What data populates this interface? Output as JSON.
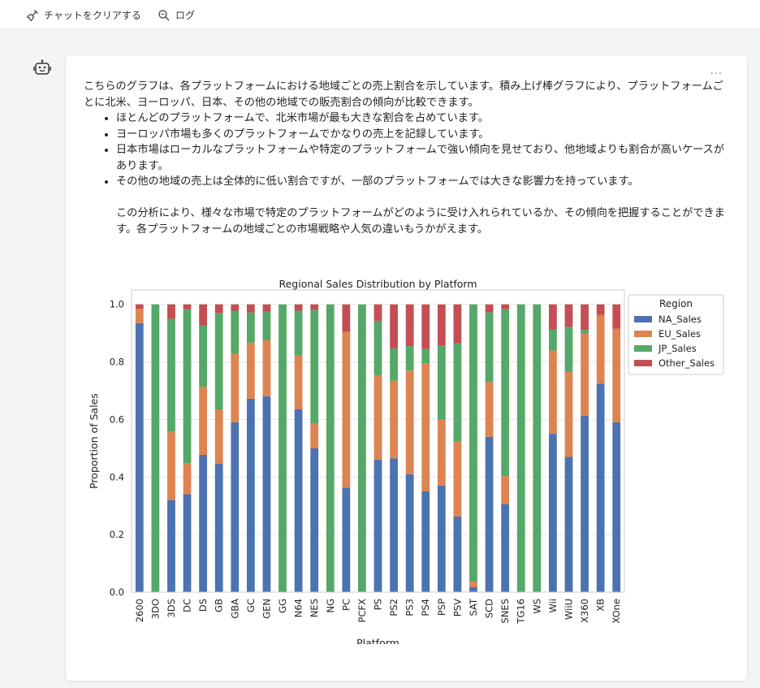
{
  "toolbar": {
    "clear_label": "チャットをクリアする",
    "log_label": "ログ",
    "clear_icon": "broom-icon",
    "log_icon": "magnifier-icon"
  },
  "message": {
    "more_label": "...",
    "intro": "こちらのグラフは、各プラットフォームにおける地域ごとの売上割合を示しています。積み上げ棒グラフにより、プラットフォームごとに北米、ヨーロッパ、日本、その他の地域での販売割合の傾向が比較できます。",
    "bullets": [
      "ほとんどのプラットフォームで、北米市場が最も大きな割合を占めています。",
      "ヨーロッパ市場も多くのプラットフォームでかなりの売上を記録しています。",
      "日本市場はローカルなプラットフォームや特定のプラットフォームで強い傾向を見せており、他地域よりも割合が高いケースがあります。",
      "その他の地域の売上は全体的に低い割合ですが、一部のプラットフォームでは大きな影響力を持っています。"
    ],
    "conclusion": "この分析により、様々な市場で特定のプラットフォームがどのように受け入れられているか、その傾向を把握することができます。各プラットフォームの地域ごとの市場戦略や人気の違いもうかがえます。"
  },
  "colors": {
    "NA_Sales": "#4c72b0",
    "EU_Sales": "#dd8452",
    "JP_Sales": "#55a868",
    "Other_Sales": "#c44e52",
    "card": "#ffffff",
    "background": "#f3f4f6"
  },
  "chart_data": {
    "type": "bar",
    "stacked": true,
    "title": "Regional Sales Distribution by Platform",
    "xlabel": "Platform",
    "ylabel": "Proportion of Sales",
    "ylim": [
      0,
      1.05
    ],
    "yticks": [
      "0.0",
      "0.2",
      "0.4",
      "0.6",
      "0.8",
      "1.0"
    ],
    "grid": true,
    "legend_title": "Region",
    "legend_position": "outside-right-top",
    "categories": [
      "2600",
      "3DO",
      "3DS",
      "DC",
      "DS",
      "GB",
      "GBA",
      "GC",
      "GEN",
      "GG",
      "N64",
      "NES",
      "NG",
      "PC",
      "PCFX",
      "PS",
      "PS2",
      "PS3",
      "PS4",
      "PSP",
      "PSV",
      "SAT",
      "SCD",
      "SNES",
      "TG16",
      "WS",
      "Wii",
      "WiiU",
      "X360",
      "XB",
      "XOne"
    ],
    "series": [
      {
        "name": "NA_Sales",
        "values": [
          0.935,
          0,
          0.32,
          0.34,
          0.477,
          0.447,
          0.59,
          0.672,
          0.68,
          0,
          0.635,
          0.5,
          0,
          0.363,
          0,
          0.46,
          0.465,
          0.41,
          0.35,
          0.37,
          0.263,
          0.018,
          0.54,
          0.306,
          0,
          0,
          0.55,
          0.47,
          0.613,
          0.725,
          0.59
        ]
      },
      {
        "name": "EU_Sales",
        "values": [
          0.05,
          0,
          0.238,
          0.108,
          0.237,
          0.188,
          0.238,
          0.195,
          0.195,
          0,
          0.188,
          0.085,
          0,
          0.542,
          0,
          0.295,
          0.27,
          0.36,
          0.445,
          0.23,
          0.262,
          0.018,
          0.19,
          0.097,
          0,
          0,
          0.29,
          0.295,
          0.285,
          0.235,
          0.325
        ]
      },
      {
        "name": "JP_Sales",
        "values": [
          0,
          1.0,
          0.392,
          0.535,
          0.213,
          0.335,
          0.15,
          0.105,
          0.1,
          1.0,
          0.155,
          0.395,
          1.0,
          0,
          1.0,
          0.188,
          0.112,
          0.085,
          0.05,
          0.258,
          0.34,
          0.964,
          0.243,
          0.58,
          1.0,
          1.0,
          0.073,
          0.157,
          0.013,
          0.003,
          0
        ]
      },
      {
        "name": "Other_Sales",
        "values": [
          0.015,
          0,
          0.05,
          0.017,
          0.073,
          0.03,
          0.022,
          0.028,
          0.025,
          0,
          0.022,
          0.02,
          0,
          0.095,
          0,
          0.057,
          0.153,
          0.145,
          0.155,
          0.142,
          0.135,
          0,
          0.027,
          0.017,
          0,
          0,
          0.087,
          0.078,
          0.089,
          0.037,
          0.085
        ]
      }
    ]
  }
}
